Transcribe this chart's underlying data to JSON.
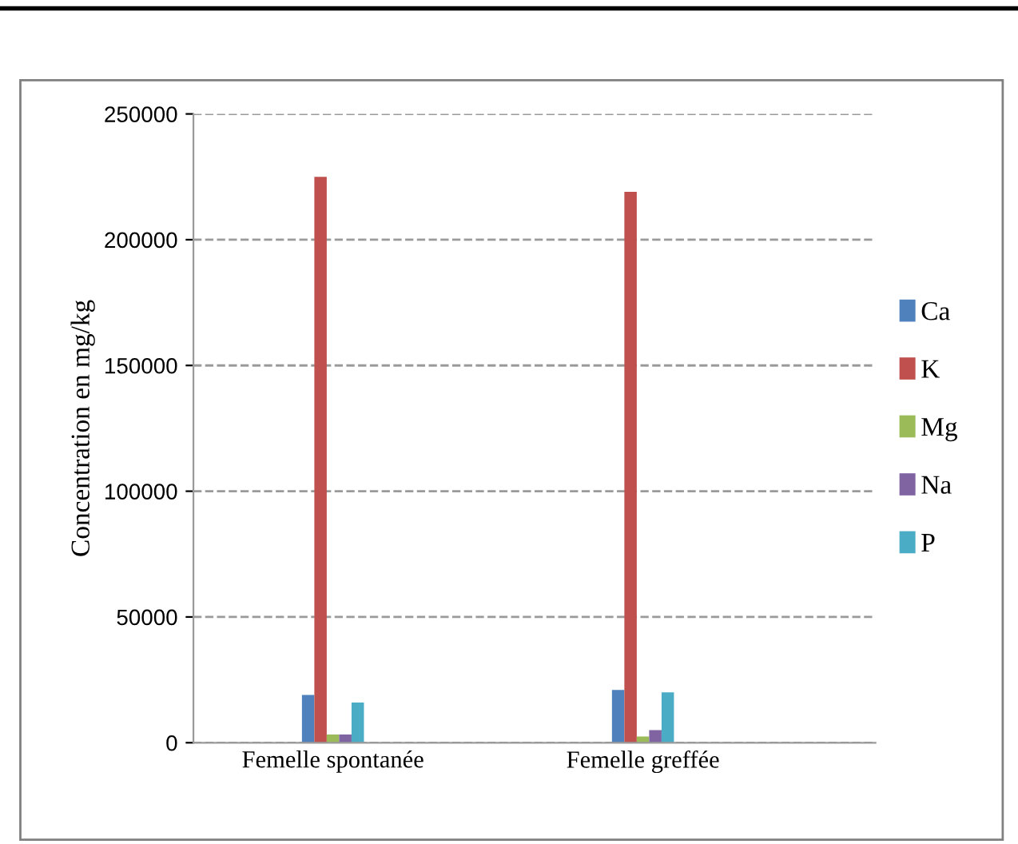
{
  "chart_data": {
    "type": "bar",
    "ylabel": "Concentration en mg/kg",
    "categories": [
      "Femelle spontanée",
      "Femelle greffée"
    ],
    "series": [
      {
        "name": "Ca",
        "color": "#4f81bd",
        "values": [
          19000,
          21000
        ]
      },
      {
        "name": "K",
        "color": "#c0504d",
        "values": [
          225000,
          219000
        ]
      },
      {
        "name": "Mg",
        "color": "#9bbb59",
        "values": [
          3300,
          2500
        ]
      },
      {
        "name": "Na",
        "color": "#8064a2",
        "values": [
          3300,
          5000
        ]
      },
      {
        "name": "P",
        "color": "#4bacc6",
        "values": [
          16000,
          20000
        ]
      }
    ],
    "ylim": [
      0,
      250000
    ],
    "yticks": [
      0,
      50000,
      100000,
      150000,
      200000,
      250000
    ],
    "grid": "y",
    "legend": "right"
  }
}
